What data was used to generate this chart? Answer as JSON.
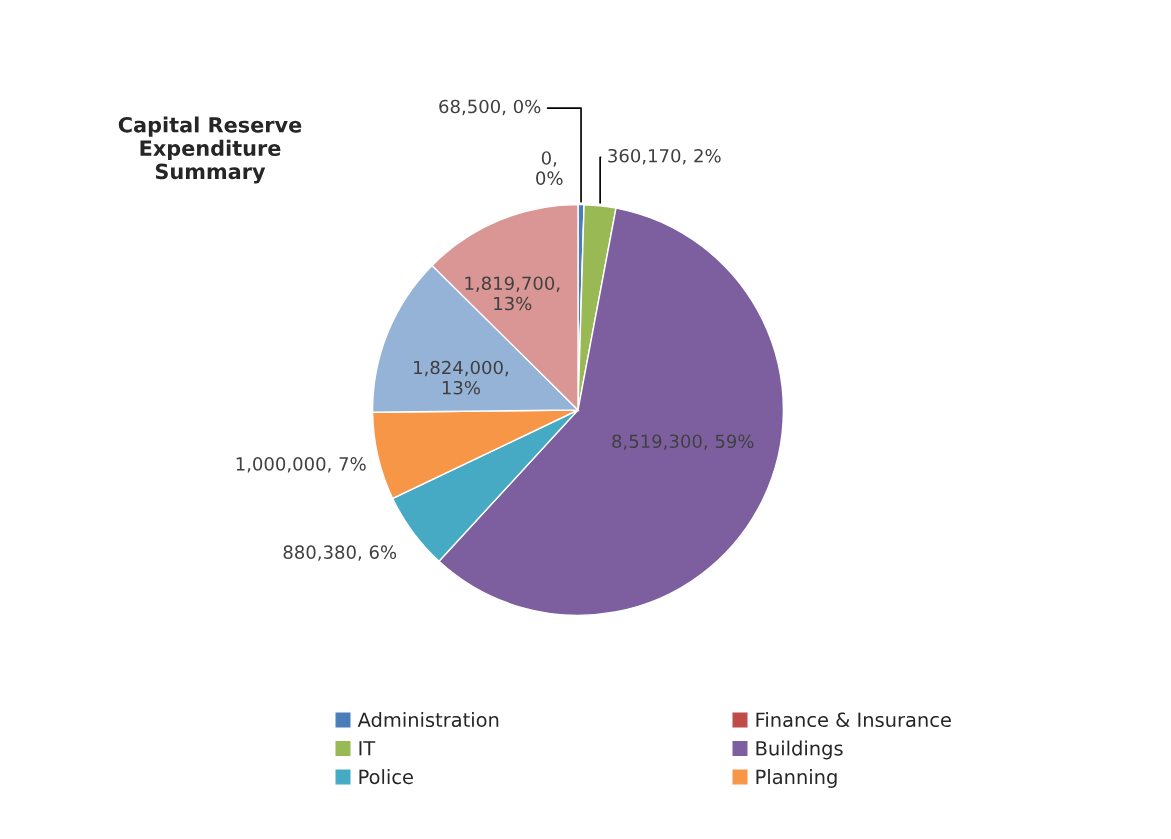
{
  "chart_data": {
    "type": "pie",
    "title": "Capital Reserve\nExpenditure\nSummary",
    "categories": [
      "Administration",
      "Finance & Insurance",
      "IT",
      "Buildings",
      "Police",
      "Planning",
      null,
      null
    ],
    "values": [
      68500,
      0,
      360170,
      8519300,
      880380,
      1000000,
      1824000,
      1819700
    ],
    "colors": [
      "#4a7ebb",
      "#be4b48",
      "#98b954",
      "#7d5fa0",
      "#46aac4",
      "#f79646",
      "#95b3d7",
      "#d99694"
    ],
    "value_labels": [
      "68,500, 0%",
      "0, 0%",
      "360,170, 2%",
      "8,519,300, 59%",
      "880,380, 6%",
      "1,000,000, 7%",
      "1,824,000, 13%",
      "1,819,700, 13%"
    ],
    "legend": "bottom"
  }
}
